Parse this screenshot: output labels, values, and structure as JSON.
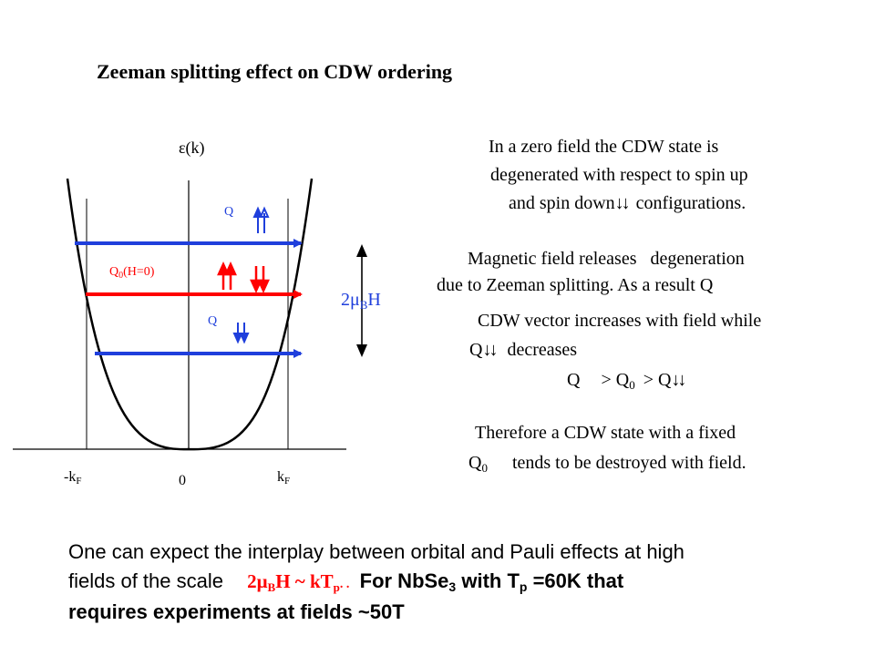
{
  "title": "Zeeman splitting effect on CDW ordering",
  "diagram": {
    "y_axis_label": "ε(k)",
    "q_up_label": "Q",
    "q0_label": "Q",
    "q0_sub": "0",
    "q0_suffix": "(H=0)",
    "q_down_label": "Q",
    "energy_label_prefix": "2μ",
    "energy_label_sub": "B",
    "energy_label_suffix": "H",
    "neg_kf_label": "-k",
    "kf_sub": "F",
    "origin_label": "0",
    "kf_label": "k",
    "colors": {
      "blue": "#1f3fdc",
      "red": "#ff0000",
      "axis": "#000000"
    }
  },
  "text": {
    "line1": "In a zero field the CDW state is",
    "line2": "degenerated with respect to spin up",
    "line3a": "and spin down",
    "line3_arrows": "↓↓",
    "line3b": "configurations.",
    "line4a": "Magnetic",
    "line4b": "field releases",
    "line4c": "degeneration",
    "line5": "due to Zeeman splitting. As a result Q",
    "line6": "CDW vector increases with field while",
    "line7a": "Q",
    "line7_arrows": "↓↓",
    "line7b": "decreases",
    "ineq_a": "Q",
    "ineq_b": "> Q",
    "ineq_sub": "0",
    "ineq_c": "> Q",
    "ineq_arrows": "↓↓",
    "line9": "Therefore  a CDW state  with a fixed",
    "line10a": "Q",
    "line10_sub": "0",
    "line10b": "tends to be destroyed with field."
  },
  "bottom": {
    "line1": "One can expect the interplay between orbital and Pauli effects at high",
    "line2a": "fields of the scale",
    "formula_a": "2μ",
    "formula_sub_b": "B",
    "formula_b": "H ~ kT",
    "formula_sub_p": "p",
    "formula_c": ". .",
    "line2b": "For NbSe",
    "line2b_sub": "3",
    "line2c": "with T",
    "line2c_sub": "p",
    "line2d": "=60K that",
    "line3": "requires experiments at fields ~50T"
  }
}
